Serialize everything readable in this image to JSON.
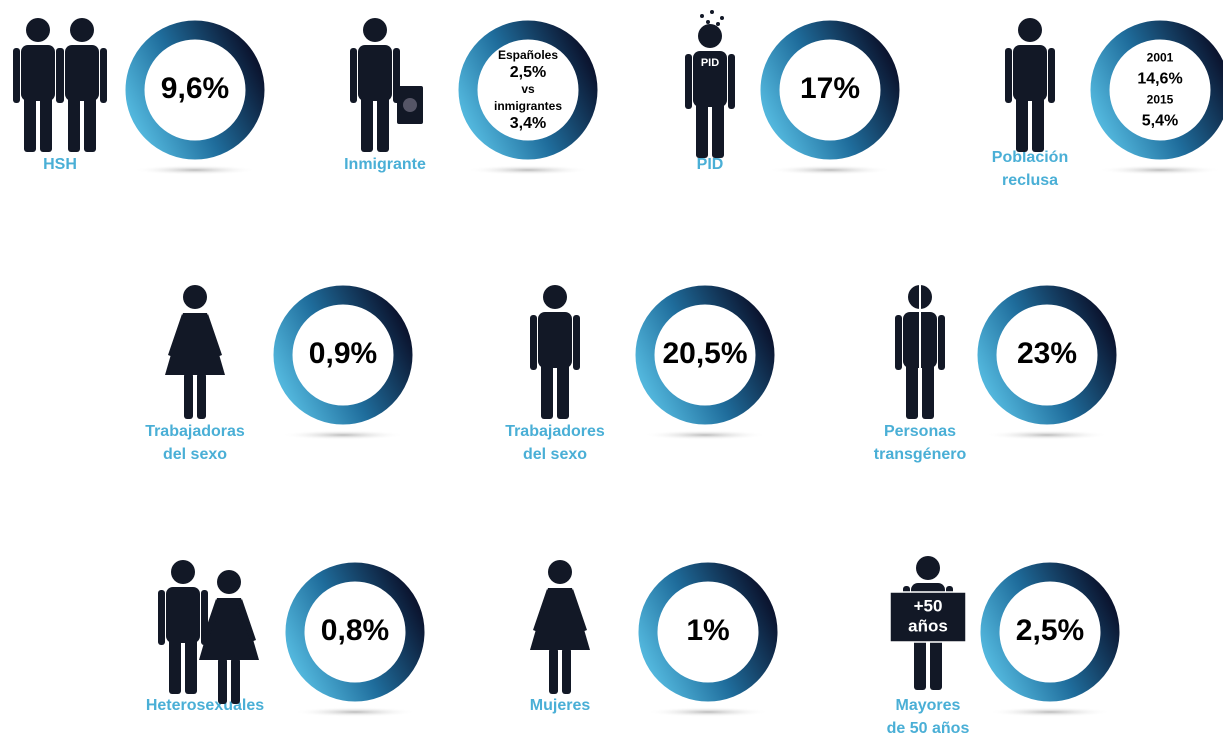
{
  "items": [
    {
      "label": [
        "HSH"
      ],
      "ring": [
        "9,6%"
      ]
    },
    {
      "label": [
        "Inmigrante"
      ],
      "ring": [
        "Españoles",
        "2,5%",
        "vs",
        "inmigrantes",
        "3,4%"
      ]
    },
    {
      "label": [
        "PID"
      ],
      "ring": [
        "17%"
      ],
      "icon_text": [
        "PID"
      ]
    },
    {
      "label": [
        "Población",
        "reclusa"
      ],
      "ring": [
        "2001",
        "14,6%",
        "2015",
        "5,4%"
      ]
    },
    {
      "label": [
        "Trabajadoras",
        "del sexo"
      ],
      "ring": [
        "0,9%"
      ]
    },
    {
      "label": [
        "Trabajadores",
        "del sexo"
      ],
      "ring": [
        "20,5%"
      ]
    },
    {
      "label": [
        "Personas",
        "transgénero"
      ],
      "ring": [
        "23%"
      ]
    },
    {
      "label": [
        "Heterosexuales"
      ],
      "ring": [
        "0,8%"
      ]
    },
    {
      "label": [
        "Mujeres"
      ],
      "ring": [
        "1%"
      ]
    },
    {
      "label": [
        "Mayores",
        "de 50 años"
      ],
      "ring": [
        "2,5%"
      ],
      "icon_text": [
        "+50",
        "años"
      ]
    }
  ]
}
